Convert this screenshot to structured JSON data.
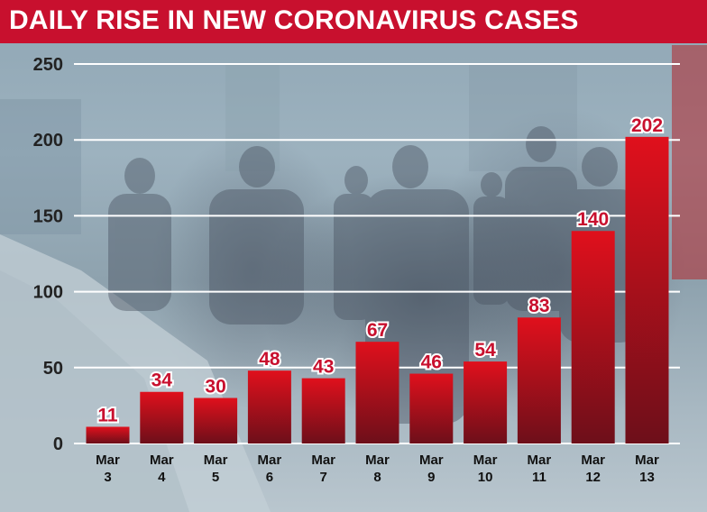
{
  "header": {
    "title": "DAILY RISE IN NEW CORONAVIRUS CASES"
  },
  "colors": {
    "banner": "#c8102e",
    "bar_dark": "#6d0f1a",
    "bar_bright": "#e0101c",
    "gridline": "#ffffff"
  },
  "chart_data": {
    "type": "bar",
    "title": "DAILY RISE IN NEW CORONAVIRUS CASES",
    "xlabel": "",
    "ylabel": "",
    "ylim": [
      0,
      250
    ],
    "yticks": [
      0,
      50,
      100,
      150,
      200,
      250
    ],
    "grid": true,
    "categories": [
      [
        "Mar",
        "3"
      ],
      [
        "Mar",
        "4"
      ],
      [
        "Mar",
        "5"
      ],
      [
        "Mar",
        "6"
      ],
      [
        "Mar",
        "7"
      ],
      [
        "Mar",
        "8"
      ],
      [
        "Mar",
        "9"
      ],
      [
        "Mar",
        "10"
      ],
      [
        "Mar",
        "11"
      ],
      [
        "Mar",
        "12"
      ],
      [
        "Mar",
        "13"
      ]
    ],
    "values": [
      11,
      34,
      30,
      48,
      43,
      67,
      46,
      54,
      83,
      140,
      202
    ],
    "data_labels": [
      "11",
      "34",
      "30",
      "48",
      "43",
      "67",
      "46",
      "54",
      "83",
      "140",
      "202"
    ]
  }
}
